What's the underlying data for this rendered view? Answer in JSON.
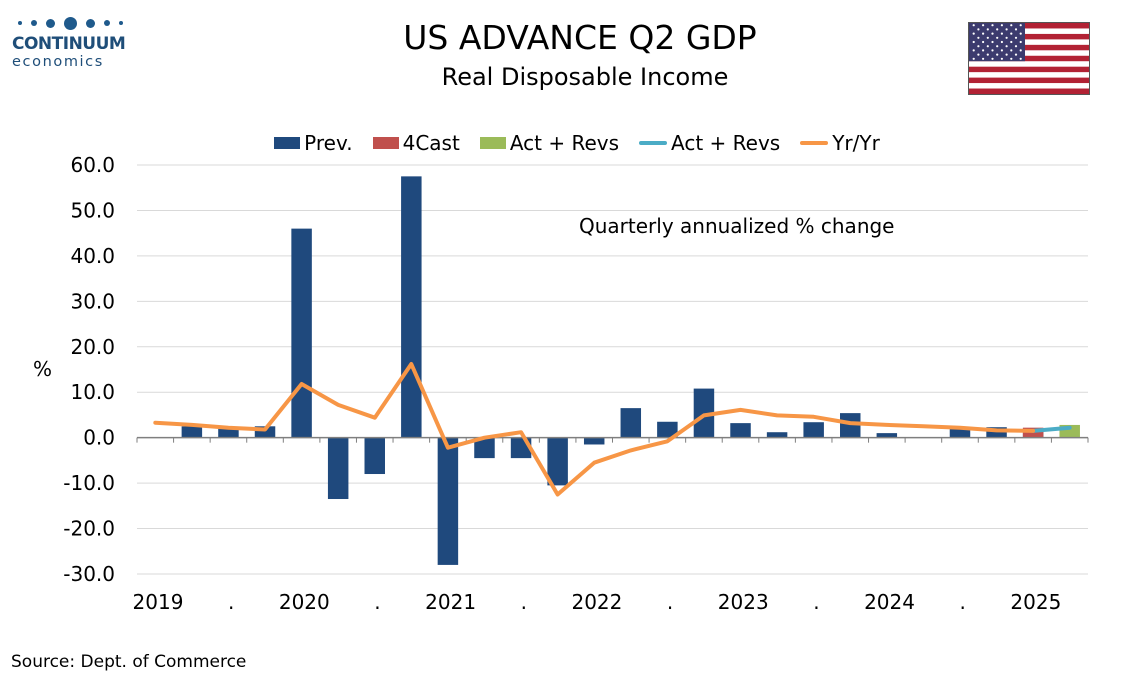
{
  "branding": {
    "logo_name": "CONTINUUM",
    "logo_sub": "economics",
    "logo_alt": "Continuum Economics logo"
  },
  "header": {
    "title": "US ADVANCE Q2  GDP",
    "subtitle": "Real Disposable Income",
    "flag_icon": "us-flag-icon"
  },
  "annotation": "Quarterly annualized % change",
  "source": "Source: Dept. of Commerce",
  "colors": {
    "prev": "#1f497d",
    "forecast": "#c0504d",
    "act_bar": "#9bbb59",
    "act_line": "#4bacc6",
    "yoy": "#f79646",
    "grid": "#d9d9d9"
  },
  "chart_data": {
    "type": "bar",
    "title": "US ADVANCE Q2  GDP",
    "subtitle": "Real Disposable Income",
    "ylabel": "%",
    "xlabel": "",
    "ylim": [
      -30,
      60
    ],
    "yticks": [
      "60.0",
      "50.0",
      "40.0",
      "30.0",
      "20.0",
      "10.0",
      "0.0",
      "-10.0",
      "-20.0",
      "-30.0"
    ],
    "ytick_values": [
      60,
      50,
      40,
      30,
      20,
      10,
      0,
      -10,
      -20,
      -30
    ],
    "xtick_labels": [
      "2019",
      ".",
      "2020",
      ".",
      "2021",
      ".",
      "2022",
      ".",
      "2023",
      ".",
      "2024",
      ".",
      "2025"
    ],
    "xtick_quarter_index": [
      0,
      2,
      4,
      6,
      8,
      10,
      12,
      14,
      16,
      18,
      20,
      22,
      24
    ],
    "quarters": [
      "2019Q1",
      "2019Q2",
      "2019Q3",
      "2019Q4",
      "2020Q1",
      "2020Q2",
      "2020Q3",
      "2020Q4",
      "2021Q1",
      "2021Q2",
      "2021Q3",
      "2021Q4",
      "2022Q1",
      "2022Q2",
      "2022Q3",
      "2022Q4",
      "2023Q1",
      "2023Q2",
      "2023Q3",
      "2023Q4",
      "2024Q1",
      "2024Q2",
      "2024Q3",
      "2024Q4",
      "2025Q1",
      "2025Q2"
    ],
    "grid": true,
    "legend_position": "top",
    "series": [
      {
        "name": "Prev.",
        "kind": "bar",
        "color_key": "prev",
        "values": [
          null,
          2.5,
          2.0,
          2.5,
          46.0,
          -13.5,
          -8.0,
          57.5,
          -28.0,
          -4.5,
          -4.5,
          -10.5,
          -1.5,
          6.5,
          3.5,
          10.8,
          3.2,
          1.2,
          3.4,
          5.4,
          1.0,
          null,
          2.2,
          2.3,
          2.0,
          null
        ]
      },
      {
        "name": "4Cast",
        "kind": "bar",
        "color_key": "forecast",
        "values": [
          null,
          null,
          null,
          null,
          null,
          null,
          null,
          null,
          null,
          null,
          null,
          null,
          null,
          null,
          null,
          null,
          null,
          null,
          null,
          null,
          null,
          null,
          null,
          null,
          2.2,
          null
        ]
      },
      {
        "name": "Act + Revs",
        "kind": "bar",
        "color_key": "act_bar",
        "values": [
          null,
          null,
          null,
          null,
          null,
          null,
          null,
          null,
          null,
          null,
          null,
          null,
          null,
          null,
          null,
          null,
          null,
          null,
          null,
          null,
          null,
          null,
          null,
          null,
          null,
          2.8
        ]
      },
      {
        "name": "Act + Revs",
        "kind": "line",
        "color_key": "act_line",
        "values": [
          null,
          null,
          null,
          null,
          null,
          null,
          null,
          null,
          null,
          null,
          null,
          null,
          null,
          null,
          null,
          null,
          null,
          null,
          null,
          null,
          null,
          null,
          null,
          null,
          1.5,
          2.2
        ]
      },
      {
        "name": "Yr/Yr",
        "kind": "line",
        "color_key": "yoy",
        "values": [
          3.3,
          2.8,
          2.2,
          1.8,
          11.8,
          7.2,
          4.4,
          16.2,
          -2.2,
          0.0,
          1.2,
          -12.5,
          -5.5,
          -2.8,
          -0.8,
          4.9,
          6.1,
          4.9,
          4.6,
          3.2,
          2.8,
          2.5,
          2.2,
          1.6,
          1.5,
          null
        ]
      }
    ]
  }
}
